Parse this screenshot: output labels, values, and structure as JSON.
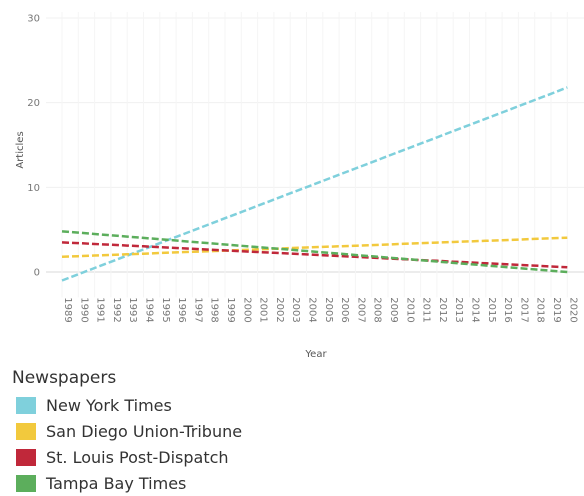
{
  "chart_data": {
    "type": "line",
    "title": "",
    "xlabel": "Year",
    "ylabel": "Articles",
    "ylim": [
      -3,
      30
    ],
    "yticks": [
      0,
      10,
      20,
      30
    ],
    "grid": true,
    "legend_position": "bottom",
    "x": [
      "1989",
      "1990",
      "1991",
      "1992",
      "1993",
      "1994",
      "1995",
      "1996",
      "1997",
      "1998",
      "1999",
      "2000",
      "2001",
      "2002",
      "2003",
      "2004",
      "2005",
      "2006",
      "2007",
      "2008",
      "2009",
      "2010",
      "2011",
      "2012",
      "2013",
      "2014",
      "2015",
      "2016",
      "2017",
      "2018",
      "2019",
      "2020"
    ],
    "series": [
      {
        "name": "New York Times",
        "color": "#7fd0dc",
        "values": [
          -1.0,
          -0.27,
          0.47,
          1.2,
          1.94,
          2.67,
          3.41,
          4.14,
          4.88,
          5.61,
          6.35,
          7.08,
          7.82,
          8.55,
          9.29,
          10.02,
          10.76,
          11.49,
          12.23,
          12.96,
          13.7,
          14.43,
          15.17,
          15.9,
          16.64,
          17.37,
          18.11,
          18.84,
          19.58,
          20.31,
          21.05,
          21.8
        ]
      },
      {
        "name": "San Diego Union-Tribune",
        "color": "#f2c93d",
        "values": [
          1.8,
          1.87,
          1.95,
          2.02,
          2.09,
          2.16,
          2.24,
          2.31,
          2.38,
          2.45,
          2.53,
          2.6,
          2.67,
          2.74,
          2.82,
          2.89,
          2.96,
          3.04,
          3.11,
          3.18,
          3.25,
          3.33,
          3.4,
          3.47,
          3.54,
          3.62,
          3.69,
          3.76,
          3.83,
          3.91,
          3.98,
          4.05
        ]
      },
      {
        "name": "St. Louis Post-Dispatch",
        "color": "#c0283a",
        "values": [
          3.5,
          3.41,
          3.31,
          3.22,
          3.12,
          3.03,
          2.93,
          2.84,
          2.74,
          2.65,
          2.55,
          2.46,
          2.36,
          2.27,
          2.17,
          2.08,
          1.98,
          1.89,
          1.79,
          1.7,
          1.6,
          1.51,
          1.41,
          1.32,
          1.22,
          1.13,
          1.03,
          0.94,
          0.84,
          0.75,
          0.65,
          0.56
        ]
      },
      {
        "name": "Tampa Bay Times",
        "color": "#5cae5c",
        "values": [
          4.8,
          4.65,
          4.49,
          4.34,
          4.18,
          4.03,
          3.87,
          3.72,
          3.56,
          3.41,
          3.25,
          3.1,
          2.94,
          2.79,
          2.63,
          2.48,
          2.32,
          2.17,
          2.01,
          1.86,
          1.7,
          1.55,
          1.39,
          1.24,
          1.08,
          0.93,
          0.77,
          0.62,
          0.46,
          0.31,
          0.15,
          0.0
        ]
      }
    ]
  },
  "legend": {
    "title": "Newspapers",
    "items": [
      {
        "label": "New York Times",
        "color": "#7fd0dc"
      },
      {
        "label": "San Diego Union-Tribune",
        "color": "#f2c93d"
      },
      {
        "label": "St. Louis Post-Dispatch",
        "color": "#c0283a"
      },
      {
        "label": "Tampa Bay Times",
        "color": "#5cae5c"
      }
    ]
  }
}
